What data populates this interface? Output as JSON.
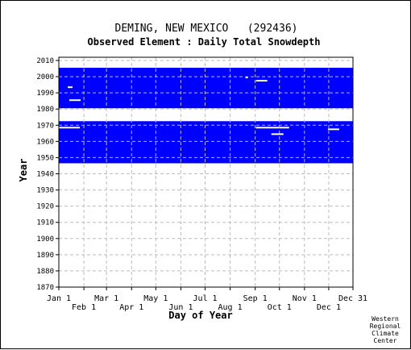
{
  "chart_data": {
    "type": "heatmap",
    "title": "DEMING, NEW MEXICO   (292436)",
    "subtitle": "Observed Element : Daily Total Snowdepth",
    "xlabel": "Day of Year",
    "ylabel": "Year",
    "credit": [
      "Western",
      "Regional",
      "Climate",
      "Center"
    ],
    "ylim": [
      1870,
      2012
    ],
    "xlim": [
      1,
      365
    ],
    "x_ticks_top": [
      {
        "label": "Jan 1",
        "day": 1
      },
      {
        "label": "Mar 1",
        "day": 60
      },
      {
        "label": "May 1",
        "day": 121
      },
      {
        "label": "Jul 1",
        "day": 182
      },
      {
        "label": "Sep 1",
        "day": 244
      },
      {
        "label": "Nov 1",
        "day": 305
      },
      {
        "label": "Dec 31",
        "day": 365
      }
    ],
    "x_ticks_bottom": [
      {
        "label": "Feb 1",
        "day": 32
      },
      {
        "label": "Apr 1",
        "day": 91
      },
      {
        "label": "Jun 1",
        "day": 152
      },
      {
        "label": "Aug 1",
        "day": 213
      },
      {
        "label": "Oct 1",
        "day": 274
      },
      {
        "label": "Dec 1",
        "day": 335
      }
    ],
    "y_ticks": [
      2010,
      2000,
      1990,
      1980,
      1970,
      1960,
      1950,
      1940,
      1930,
      1920,
      1910,
      1900,
      1890,
      1880,
      1870
    ],
    "data_color": "#0000ff",
    "data_blocks": [
      {
        "label": "observed 1946-1972",
        "start_year": 1946.5,
        "end_year": 1972.5,
        "start_day": 1,
        "end_day": 365
      },
      {
        "label": "observed 1980-2005 (Jan-Feb)",
        "start_year": 1980.5,
        "end_year": 2005.5,
        "start_day": 1,
        "end_day": 14
      },
      {
        "label": "observed 1980-2005",
        "start_year": 1980.5,
        "end_year": 2005.5,
        "start_day": 14,
        "end_day": 365
      }
    ],
    "missing_segments": [
      {
        "year": 1985.5,
        "start_day": 14,
        "end_day": 28
      },
      {
        "year": 1997.5,
        "start_day": 245,
        "end_day": 259
      },
      {
        "year": 1999.5,
        "start_day": 232,
        "end_day": 235
      },
      {
        "year": 1993.5,
        "start_day": 12,
        "end_day": 18
      },
      {
        "year": 1968.5,
        "start_day": 1,
        "end_day": 27
      },
      {
        "year": 1968.5,
        "start_day": 245,
        "end_day": 286
      },
      {
        "year": 1964.5,
        "start_day": 264,
        "end_day": 279
      },
      {
        "year": 1967.5,
        "start_day": 334,
        "end_day": 348
      }
    ]
  }
}
